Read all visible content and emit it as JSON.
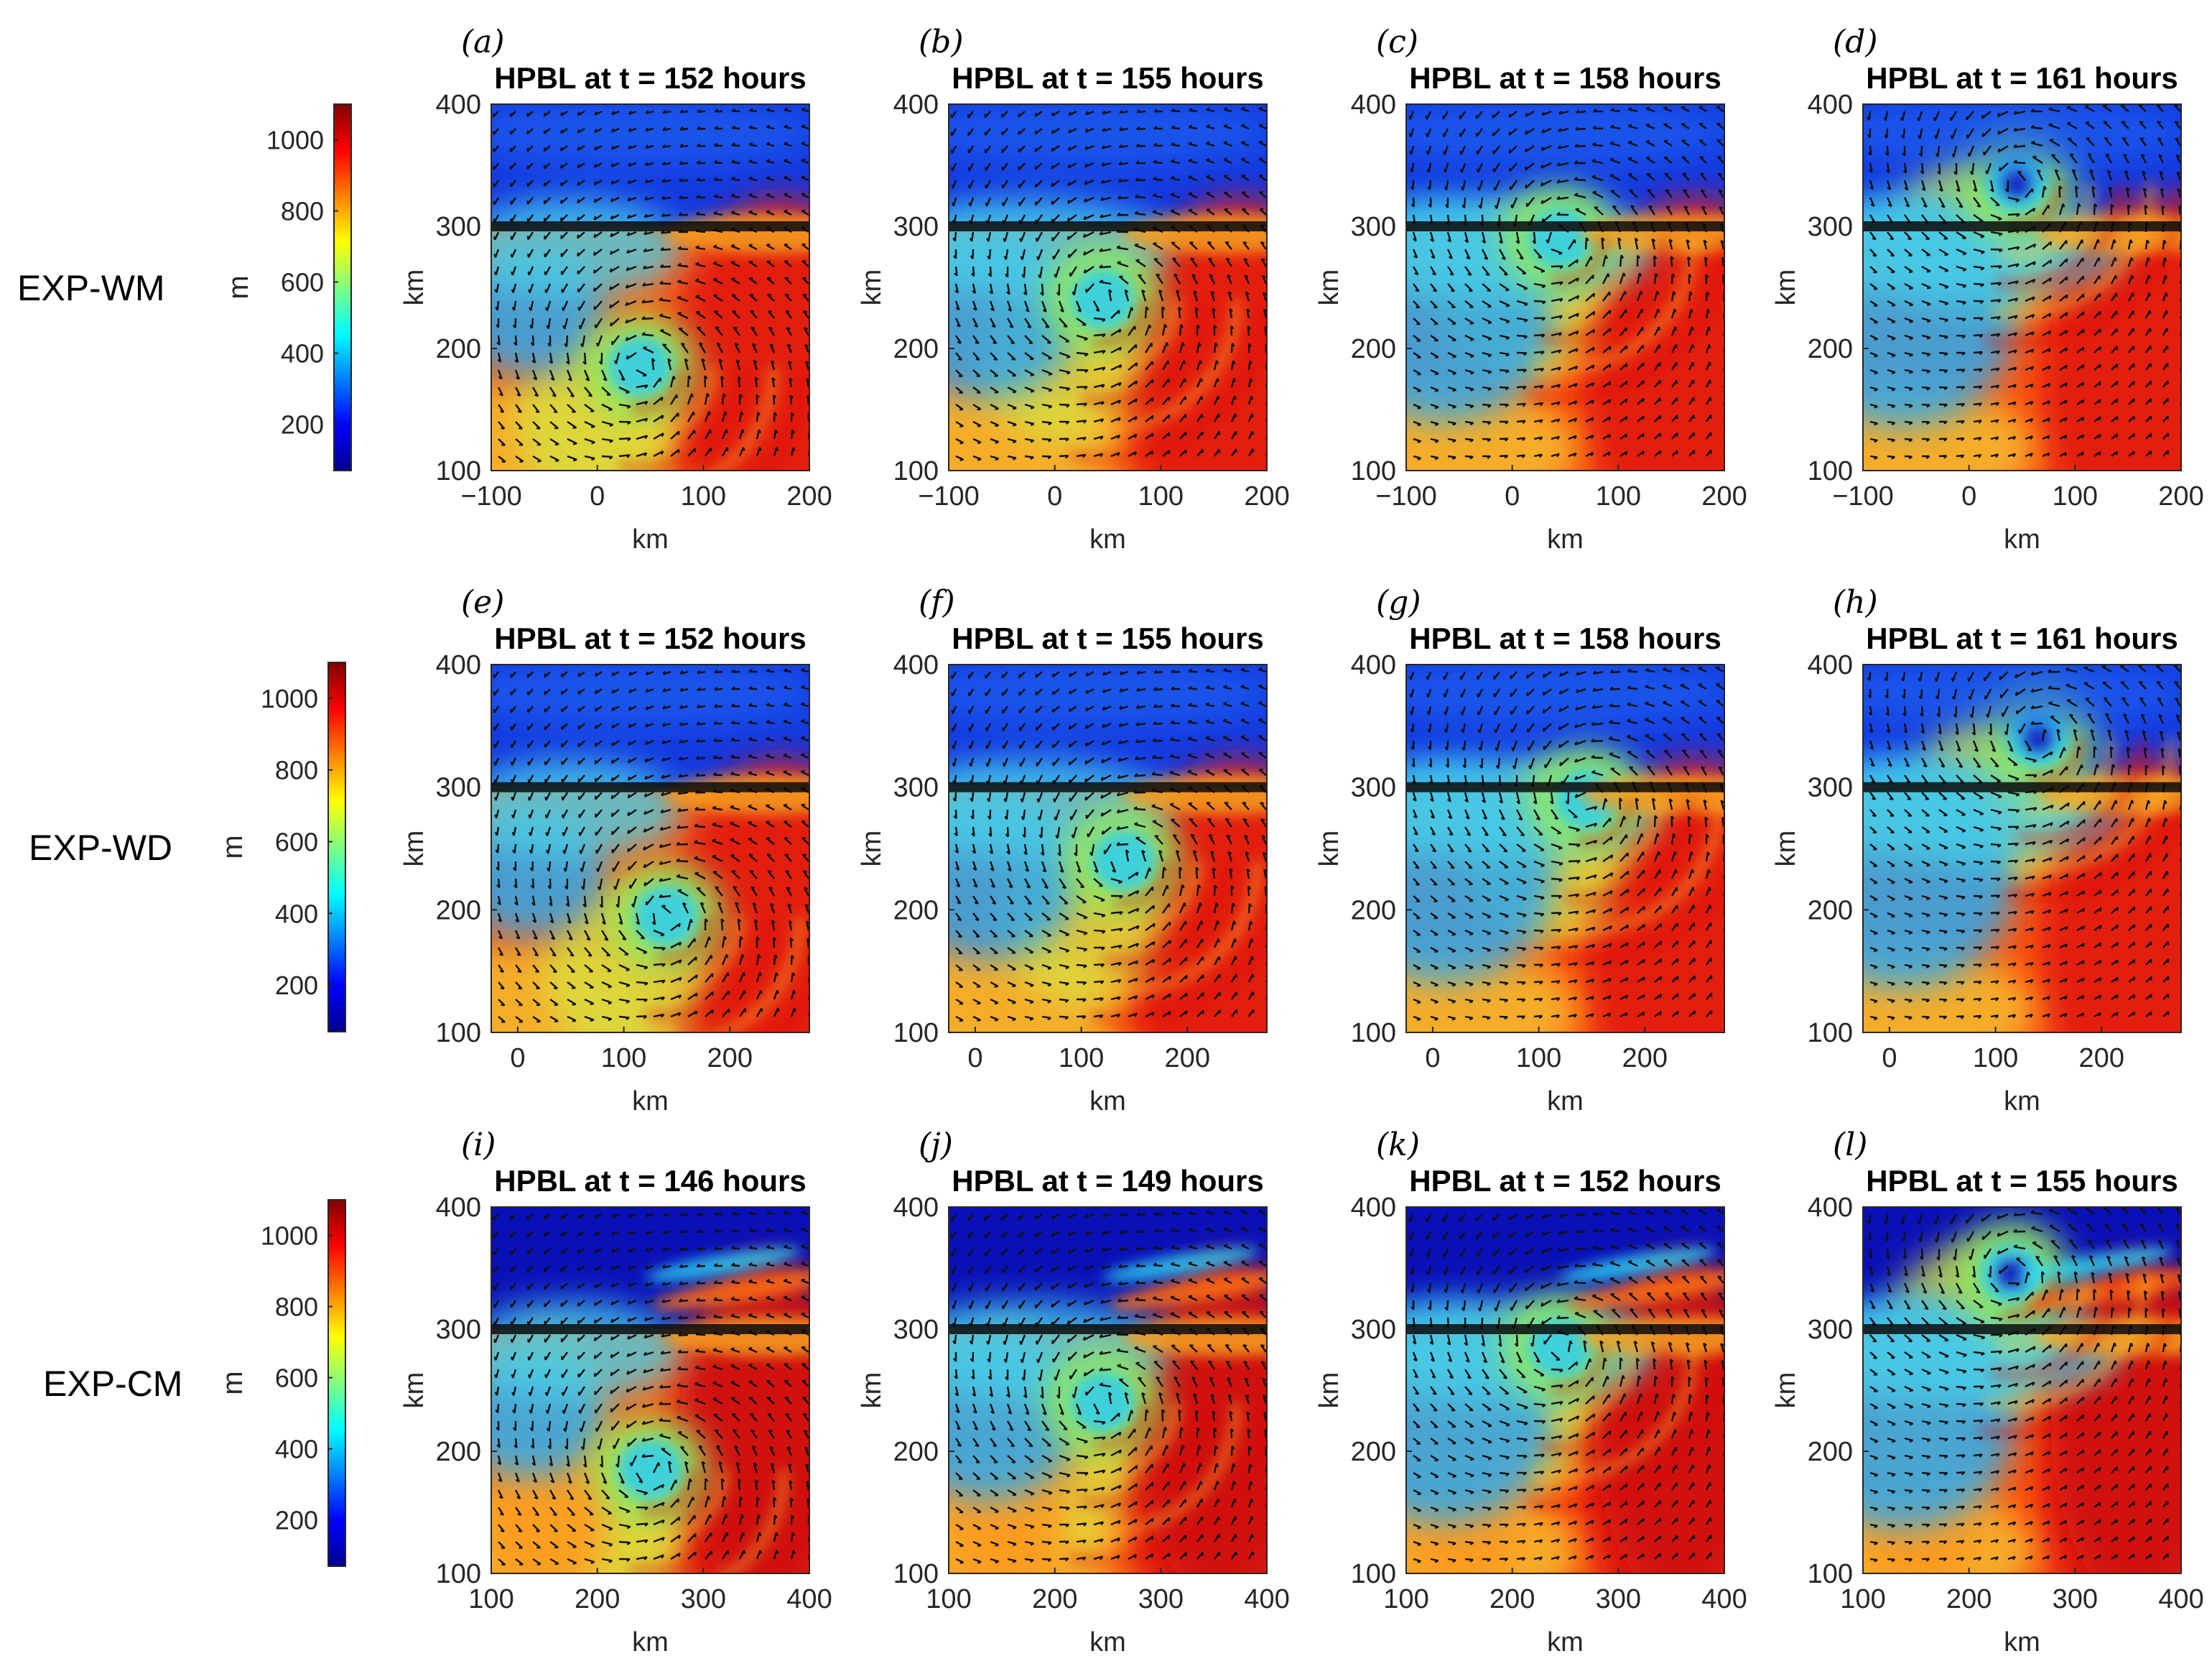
{
  "figure": {
    "unit_label": "m",
    "axis_unit": "km",
    "colorbar": {
      "ticks": [
        200,
        400,
        600,
        800,
        1000
      ],
      "range": [
        70,
        1100
      ],
      "colormap": [
        "#00008f",
        "#0000ff",
        "#0080ff",
        "#00ffff",
        "#80ff80",
        "#ffff00",
        "#ff8000",
        "#ff0000",
        "#800000"
      ]
    },
    "rows": [
      {
        "experiment": "EXP-WM"
      },
      {
        "experiment": "EXP-WD"
      },
      {
        "experiment": "EXP-CM"
      }
    ]
  },
  "chart_data": [
    {
      "type": "heatmap",
      "panel": "(a)",
      "title": "HPBL at t = 152 hours",
      "xlabel": "km",
      "ylabel": "km",
      "x_ticks": [
        "−100",
        "0",
        "100",
        "200"
      ],
      "y_ticks": [
        "100",
        "200",
        "300",
        "400"
      ],
      "xlim": [
        -100,
        200
      ],
      "ylim": [
        100,
        400
      ],
      "coastline_y": 300,
      "vortex_center": [
        40,
        185
      ],
      "colorbar_label": "m"
    },
    {
      "type": "heatmap",
      "panel": "(b)",
      "title": "HPBL at t = 155 hours",
      "xlabel": "km",
      "ylabel": "km",
      "x_ticks": [
        "−100",
        "0",
        "100",
        "200"
      ],
      "y_ticks": [
        "100",
        "200",
        "300",
        "400"
      ],
      "xlim": [
        -100,
        200
      ],
      "ylim": [
        100,
        400
      ],
      "coastline_y": 300,
      "vortex_center": [
        45,
        240
      ],
      "colorbar_label": "m"
    },
    {
      "type": "heatmap",
      "panel": "(c)",
      "title": "HPBL at t = 158 hours",
      "xlabel": "km",
      "ylabel": "km",
      "x_ticks": [
        "−100",
        "0",
        "100",
        "200"
      ],
      "y_ticks": [
        "100",
        "200",
        "300",
        "400"
      ],
      "xlim": [
        -100,
        200
      ],
      "ylim": [
        100,
        400
      ],
      "coastline_y": 300,
      "vortex_center": [
        45,
        290
      ],
      "colorbar_label": "m"
    },
    {
      "type": "heatmap",
      "panel": "(d)",
      "title": "HPBL at t = 161 hours",
      "xlabel": "km",
      "ylabel": "km",
      "x_ticks": [
        "−100",
        "0",
        "100",
        "200"
      ],
      "y_ticks": [
        "100",
        "200",
        "300",
        "400"
      ],
      "xlim": [
        -100,
        200
      ],
      "ylim": [
        100,
        400
      ],
      "coastline_y": 300,
      "vortex_center": [
        45,
        335
      ],
      "colorbar_label": "m"
    },
    {
      "type": "heatmap",
      "panel": "(e)",
      "title": "HPBL at t = 152 hours",
      "xlabel": "km",
      "ylabel": "km",
      "x_ticks": [
        "0",
        "100",
        "200"
      ],
      "y_ticks": [
        "100",
        "200",
        "300",
        "400"
      ],
      "xlim": [
        -25,
        275
      ],
      "ylim": [
        100,
        400
      ],
      "coastline_y": 300,
      "vortex_center": [
        140,
        195
      ],
      "colorbar_label": "m"
    },
    {
      "type": "heatmap",
      "panel": "(f)",
      "title": "HPBL at t = 155 hours",
      "xlabel": "km",
      "ylabel": "km",
      "x_ticks": [
        "0",
        "100",
        "200"
      ],
      "y_ticks": [
        "100",
        "200",
        "300",
        "400"
      ],
      "xlim": [
        -25,
        275
      ],
      "ylim": [
        100,
        400
      ],
      "coastline_y": 300,
      "vortex_center": [
        140,
        240
      ],
      "colorbar_label": "m"
    },
    {
      "type": "heatmap",
      "panel": "(g)",
      "title": "HPBL at t = 158 hours",
      "xlabel": "km",
      "ylabel": "km",
      "x_ticks": [
        "0",
        "100",
        "200"
      ],
      "y_ticks": [
        "100",
        "200",
        "300",
        "400"
      ],
      "xlim": [
        -25,
        275
      ],
      "ylim": [
        100,
        400
      ],
      "coastline_y": 300,
      "vortex_center": [
        145,
        290
      ],
      "colorbar_label": "m"
    },
    {
      "type": "heatmap",
      "panel": "(h)",
      "title": "HPBL at t = 161 hours",
      "xlabel": "km",
      "ylabel": "km",
      "x_ticks": [
        "0",
        "100",
        "200"
      ],
      "y_ticks": [
        "100",
        "200",
        "300",
        "400"
      ],
      "xlim": [
        -25,
        275
      ],
      "ylim": [
        100,
        400
      ],
      "coastline_y": 300,
      "vortex_center": [
        140,
        340
      ],
      "colorbar_label": "m"
    },
    {
      "type": "heatmap",
      "panel": "(i)",
      "title": "HPBL at t = 146 hours",
      "xlabel": "km",
      "ylabel": "km",
      "x_ticks": [
        "100",
        "200",
        "300",
        "400"
      ],
      "y_ticks": [
        "100",
        "200",
        "300",
        "400"
      ],
      "xlim": [
        100,
        400
      ],
      "ylim": [
        100,
        400
      ],
      "coastline_y": 300,
      "vortex_center": [
        250,
        185
      ],
      "colorbar_label": "m"
    },
    {
      "type": "heatmap",
      "panel": "(j)",
      "title": "HPBL at t = 149 hours",
      "xlabel": "km",
      "ylabel": "km",
      "x_ticks": [
        "100",
        "200",
        "300",
        "400"
      ],
      "y_ticks": [
        "100",
        "200",
        "300",
        "400"
      ],
      "xlim": [
        100,
        400
      ],
      "ylim": [
        100,
        400
      ],
      "coastline_y": 300,
      "vortex_center": [
        245,
        240
      ],
      "colorbar_label": "m"
    },
    {
      "type": "heatmap",
      "panel": "(k)",
      "title": "HPBL at t = 152 hours",
      "xlabel": "km",
      "ylabel": "km",
      "x_ticks": [
        "100",
        "200",
        "300",
        "400"
      ],
      "y_ticks": [
        "100",
        "200",
        "300",
        "400"
      ],
      "xlim": [
        100,
        400
      ],
      "ylim": [
        100,
        400
      ],
      "coastline_y": 300,
      "vortex_center": [
        245,
        285
      ],
      "colorbar_label": "m"
    },
    {
      "type": "heatmap",
      "panel": "(l)",
      "title": "HPBL at t = 155 hours",
      "xlabel": "km",
      "ylabel": "km",
      "x_ticks": [
        "100",
        "200",
        "300",
        "400"
      ],
      "y_ticks": [
        "100",
        "200",
        "300",
        "400"
      ],
      "xlim": [
        100,
        400
      ],
      "ylim": [
        100,
        400
      ],
      "coastline_y": 300,
      "vortex_center": [
        240,
        345
      ],
      "colorbar_label": "m"
    }
  ]
}
